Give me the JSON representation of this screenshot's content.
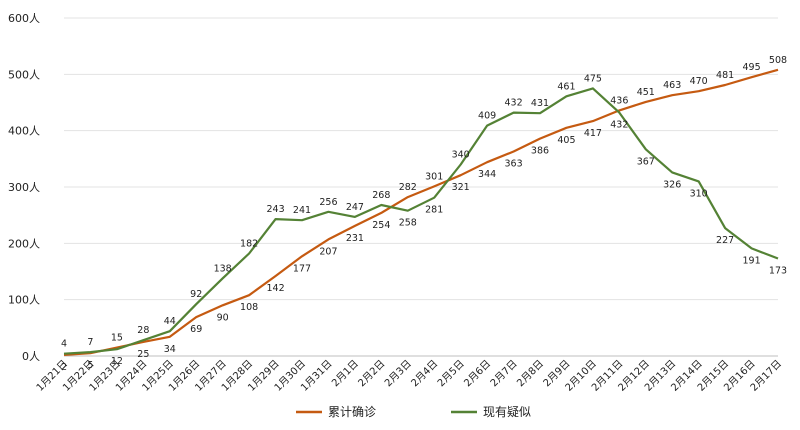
{
  "chart_data": {
    "type": "line",
    "categories": [
      "1月21日",
      "1月22日",
      "1月23日",
      "1月24日",
      "1月25日",
      "1月26日",
      "1月27日",
      "1月28日",
      "1月29日",
      "1月30日",
      "1月31日",
      "2月1日",
      "2月2日",
      "2月3日",
      "2月4日",
      "2月5日",
      "2月6日",
      "2月7日",
      "2月8日",
      "2月9日",
      "2月10日",
      "2月11日",
      "2月12日",
      "2月13日",
      "2月14日",
      "2月15日",
      "2月16日",
      "2月17日"
    ],
    "series": [
      {
        "name": "累计确诊",
        "color": "#C55A11",
        "values": [
          2,
          5,
          15,
          25,
          34,
          69,
          90,
          108,
          142,
          177,
          207,
          231,
          254,
          282,
          301,
          321,
          344,
          363,
          386,
          405,
          417,
          436,
          451,
          463,
          470,
          481,
          495,
          508
        ]
      },
      {
        "name": "现有疑似",
        "color": "#548235",
        "values": [
          4,
          7,
          12,
          28,
          44,
          92,
          138,
          182,
          243,
          241,
          256,
          247,
          268,
          258,
          281,
          340,
          409,
          432,
          431,
          461,
          475,
          432,
          367,
          326,
          310,
          227,
          191,
          173
        ]
      }
    ],
    "yticks": [
      "0人",
      "100人",
      "200人",
      "300人",
      "400人",
      "500人",
      "600人"
    ],
    "ylim": [
      0,
      600
    ],
    "grid": true,
    "legend": "bottom"
  }
}
